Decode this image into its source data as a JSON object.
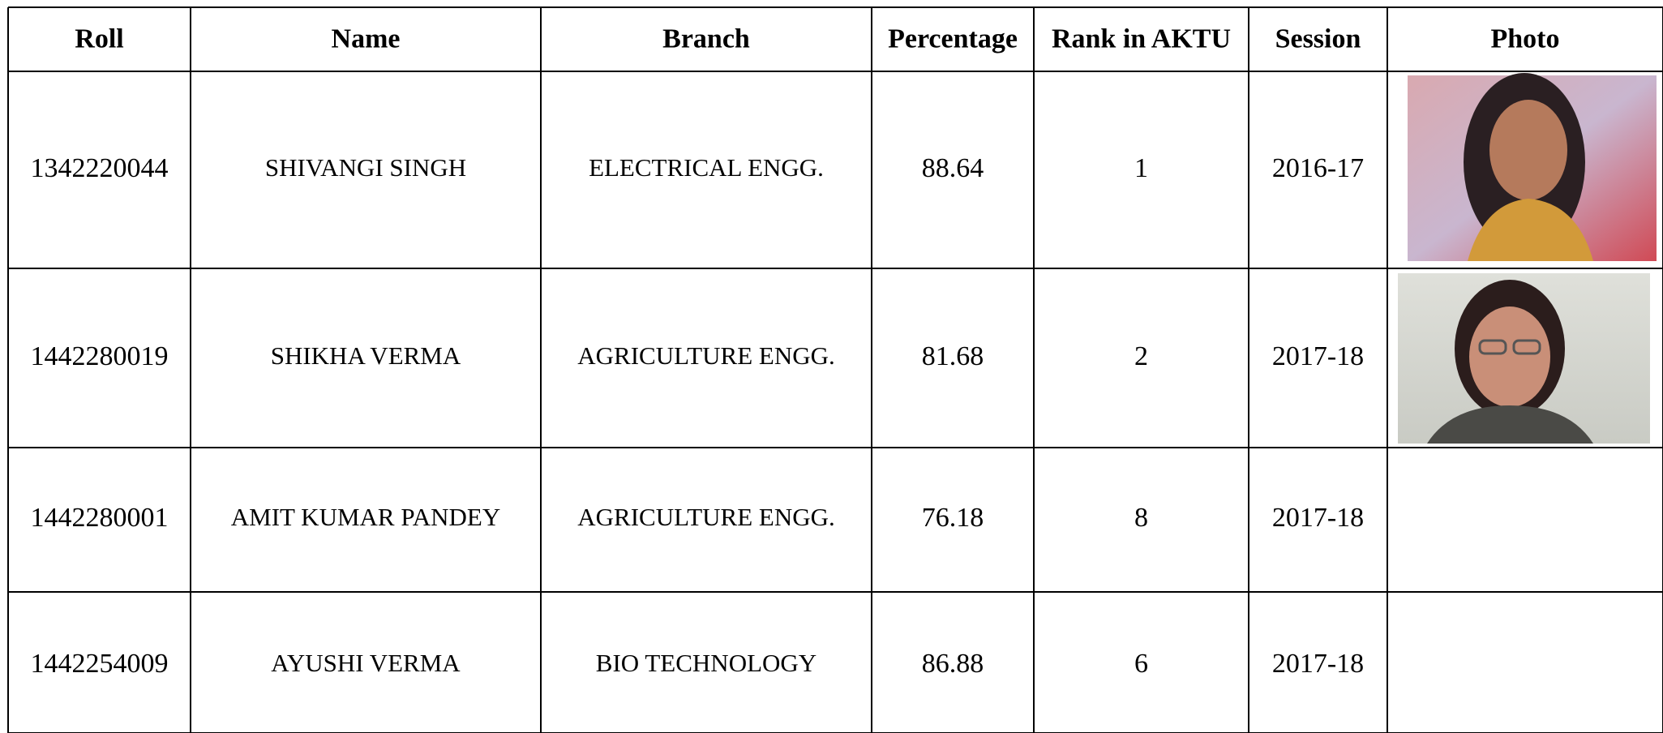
{
  "table": {
    "columns": [
      "Roll",
      "Name",
      "Branch",
      "Percentage",
      "Rank in AKTU",
      "Session",
      "Photo"
    ],
    "rows": [
      [
        "1342220044",
        "SHIVANGI SINGH",
        "ELECTRICAL ENGG.",
        "88.64",
        "1",
        "2016-17"
      ],
      [
        "1442280019",
        "SHIKHA VERMA",
        "AGRICULTURE ENGG.",
        "81.68",
        "2",
        "2017-18"
      ],
      [
        "1442280001",
        "AMIT KUMAR PANDEY",
        "AGRICULTURE ENGG.",
        "76.18",
        "8",
        "2017-18"
      ],
      [
        "1442254009",
        "AYUSHI VERMA",
        "BIO TECHNOLOGY",
        "86.88",
        "6",
        "2017-18"
      ]
    ]
  }
}
